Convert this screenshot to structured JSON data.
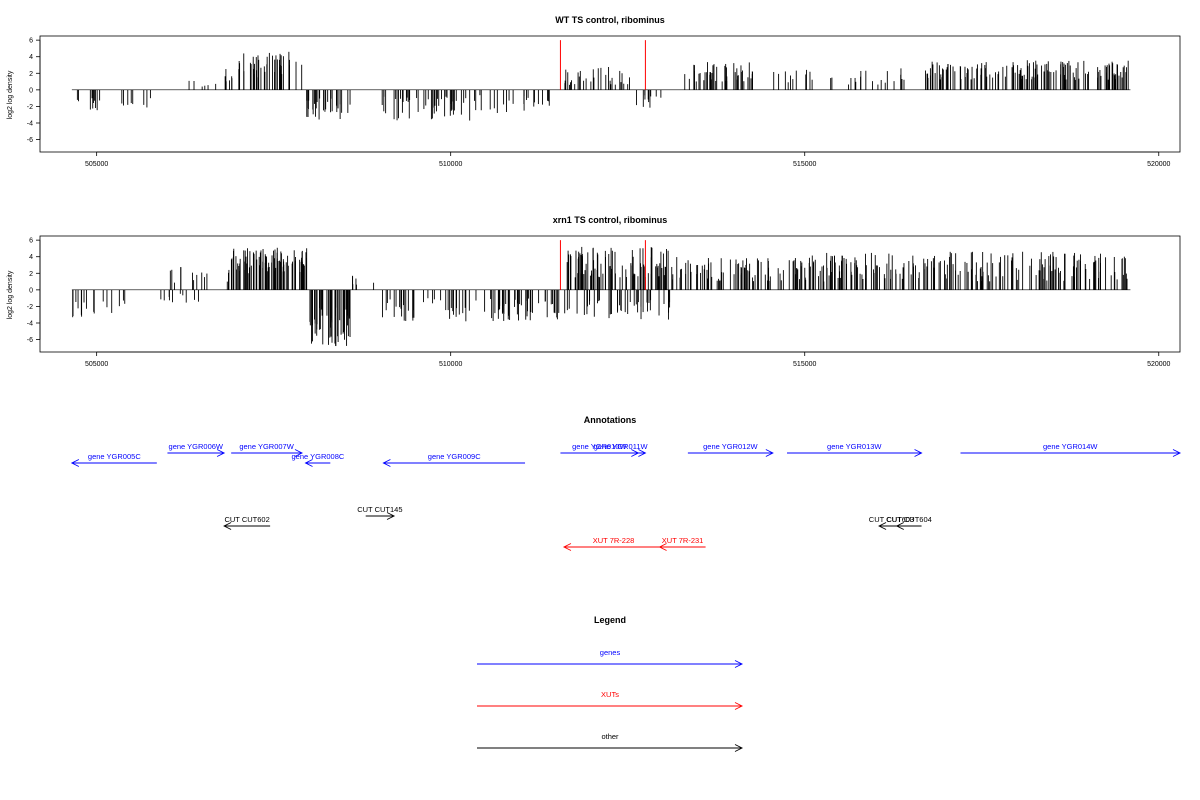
{
  "chart_data": [
    {
      "type": "bar",
      "title": "WT TS control, ribominus",
      "ylabel": "log2 log density",
      "xlim": [
        504200,
        520300
      ],
      "ylim": [
        -7.5,
        6.5
      ],
      "yticks": [
        6,
        4,
        2,
        0,
        -2,
        -4,
        -6
      ],
      "xticks": [
        505000,
        510000,
        515000,
        520000
      ],
      "xtick_labels": [
        "505000",
        "510000",
        "515000",
        "520000"
      ],
      "series": [
        {
          "color": "#000000",
          "regions": [
            {
              "x": [
                504650,
                505100
              ],
              "y": [
                -1.0,
                -2.8
              ],
              "n": 10
            },
            {
              "x": [
                505300,
                505800
              ],
              "y": [
                -0.8,
                -2.4
              ],
              "n": 8
            },
            {
              "x": [
                506000,
                506700
              ],
              "y": [
                0.3,
                1.2
              ],
              "n": 6
            },
            {
              "x": [
                506700,
                507000
              ],
              "y": [
                1.0,
                2.6
              ],
              "n": 6
            },
            {
              "x": [
                507000,
                507900
              ],
              "y": [
                1.5,
                4.6
              ],
              "n": 42
            },
            {
              "x": [
                507900,
                508600
              ],
              "y": [
                -1.0,
                -3.6
              ],
              "n": 30
            },
            {
              "x": [
                509000,
                510300
              ],
              "y": [
                -0.8,
                -3.8
              ],
              "n": 45
            },
            {
              "x": [
                510300,
                511400
              ],
              "y": [
                -0.6,
                -2.8
              ],
              "n": 24
            },
            {
              "x": [
                511600,
                512600
              ],
              "y": [
                0.5,
                2.8
              ],
              "n": 30
            },
            {
              "x": [
                512600,
                513000
              ],
              "y": [
                -0.6,
                -2.2
              ],
              "n": 10
            },
            {
              "x": [
                513300,
                514300
              ],
              "y": [
                1.0,
                3.4
              ],
              "n": 45
            },
            {
              "x": [
                514400,
                516600
              ],
              "y": [
                0.6,
                2.6
              ],
              "n": 30
            },
            {
              "x": [
                516700,
                519600
              ],
              "y": [
                1.2,
                3.6
              ],
              "n": 150
            }
          ]
        },
        {
          "color": "#ff0000",
          "points": [
            {
              "x": 511550,
              "y": 6.0
            },
            {
              "x": 512750,
              "y": 6.0
            }
          ]
        }
      ]
    },
    {
      "type": "bar",
      "title": "xrn1 TS control, ribominus",
      "ylabel": "log2 log density",
      "xlim": [
        504200,
        520300
      ],
      "ylim": [
        -7.5,
        6.5
      ],
      "yticks": [
        6,
        4,
        2,
        0,
        -2,
        -4,
        -6
      ],
      "xticks": [
        505000,
        510000,
        515000,
        520000
      ],
      "xtick_labels": [
        "505000",
        "510000",
        "515000",
        "520000"
      ],
      "series": [
        {
          "color": "#000000",
          "regions": [
            {
              "x": [
                504650,
                505400
              ],
              "y": [
                -1.2,
                -3.4
              ],
              "n": 16
            },
            {
              "x": [
                505400,
                506500
              ],
              "y": [
                -0.4,
                -1.6
              ],
              "n": 10
            },
            {
              "x": [
                506000,
                506900
              ],
              "y": [
                0.8,
                2.8
              ],
              "n": 14
            },
            {
              "x": [
                506900,
                508000
              ],
              "y": [
                2.0,
                5.2
              ],
              "n": 90
            },
            {
              "x": [
                508000,
                508600
              ],
              "y": [
                -2.0,
                -6.8
              ],
              "n": 50
            },
            {
              "x": [
                508600,
                509000
              ],
              "y": [
                0.6,
                2.0
              ],
              "n": 6
            },
            {
              "x": [
                509000,
                511500
              ],
              "y": [
                -1.0,
                -3.8
              ],
              "n": 80
            },
            {
              "x": [
                511500,
                513100
              ],
              "y": [
                -1.0,
                -3.6
              ],
              "n": 45
            },
            {
              "x": [
                511600,
                513100
              ],
              "y": [
                1.5,
                5.2
              ],
              "n": 90
            },
            {
              "x": [
                513100,
                515000
              ],
              "y": [
                1.0,
                4.0
              ],
              "n": 80
            },
            {
              "x": [
                515000,
                519600
              ],
              "y": [
                1.0,
                4.6
              ],
              "n": 200
            }
          ]
        },
        {
          "color": "#ff0000",
          "points": [
            {
              "x": 511550,
              "y": 6.0
            },
            {
              "x": 512750,
              "y": 6.0
            }
          ]
        }
      ]
    },
    {
      "type": "annotation-track",
      "title": "Annotations",
      "features": [
        {
          "label": "gene YGR005C",
          "start": 504650,
          "end": 505850,
          "strand": "-",
          "color": "#0000ff",
          "row": 1
        },
        {
          "label": "gene YGR006W",
          "start": 506000,
          "end": 506800,
          "strand": "+",
          "color": "#0000ff",
          "row": 0
        },
        {
          "label": "gene YGR007W",
          "start": 506900,
          "end": 507900,
          "strand": "+",
          "color": "#0000ff",
          "row": 0
        },
        {
          "label": "gene YGR008C",
          "start": 507950,
          "end": 508300,
          "strand": "-",
          "color": "#0000ff",
          "row": 1
        },
        {
          "label": "gene YGR009C",
          "start": 509050,
          "end": 511050,
          "strand": "-",
          "color": "#0000ff",
          "row": 1
        },
        {
          "label": "gene YGR010W",
          "start": 511550,
          "end": 512650,
          "strand": "+",
          "color": "#0000ff",
          "row": 0
        },
        {
          "label": "gene YGR011W",
          "start": 512050,
          "end": 512750,
          "strand": "+",
          "color": "#0000ff",
          "row": 0
        },
        {
          "label": "gene YGR012W",
          "start": 513350,
          "end": 514550,
          "strand": "+",
          "color": "#0000ff",
          "row": 0
        },
        {
          "label": "gene YGR013W",
          "start": 514750,
          "end": 516650,
          "strand": "+",
          "color": "#0000ff",
          "row": 0
        },
        {
          "label": "gene YGR014W",
          "start": 517200,
          "end": 520300,
          "strand": "+",
          "color": "#0000ff",
          "row": 0
        },
        {
          "label": "CUT CUT602",
          "start": 506800,
          "end": 507450,
          "strand": "-",
          "color": "#000000",
          "row": 3
        },
        {
          "label": "CUT CUT145",
          "start": 508800,
          "end": 509200,
          "strand": "+",
          "color": "#000000",
          "row": 2
        },
        {
          "label": "CUT CUT603",
          "start": 516050,
          "end": 516400,
          "strand": "-",
          "color": "#000000",
          "row": 3
        },
        {
          "label": "CUT CUT604",
          "start": 516300,
          "end": 516650,
          "strand": "-",
          "color": "#000000",
          "row": 3
        },
        {
          "label": "XUT 7R-228",
          "start": 511600,
          "end": 513000,
          "strand": "-",
          "color": "#ff0000",
          "row": 4
        },
        {
          "label": "XUT 7R-231",
          "start": 512950,
          "end": 513600,
          "strand": "-",
          "color": "#ff0000",
          "row": 4
        }
      ]
    },
    {
      "type": "legend",
      "title": "Legend",
      "entries": [
        {
          "label": "genes",
          "color": "#0000ff"
        },
        {
          "label": "XUTs",
          "color": "#ff0000"
        },
        {
          "label": "other",
          "color": "#000000"
        }
      ]
    }
  ]
}
